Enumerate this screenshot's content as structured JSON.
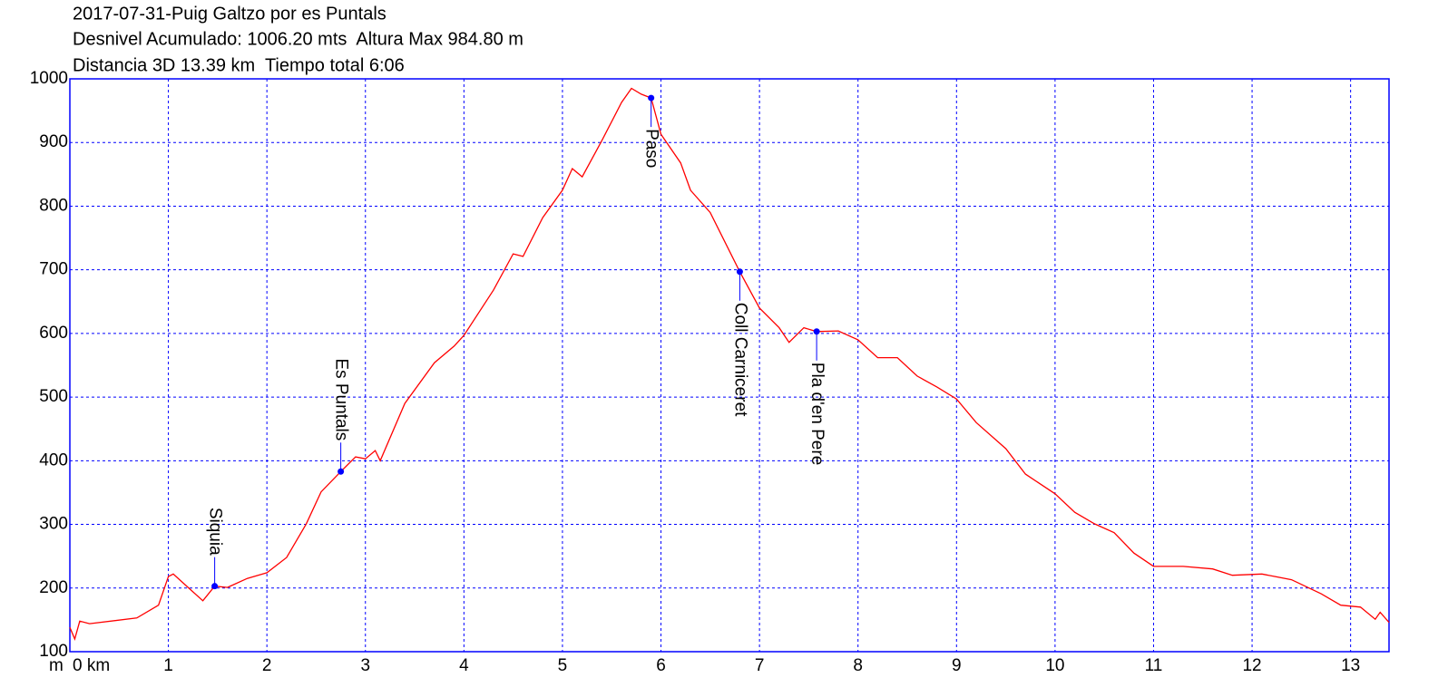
{
  "chart_data": {
    "type": "line",
    "title": "2017-07-31-Puig Galtzo por es Puntals",
    "subtitle": [
      "Desnivel Acumulado: 1006.20 mts  Altura Max 984.80 m",
      "Distancia 3D 13.39 km  Tiempo total 6:06"
    ],
    "y_unit": "m",
    "x": [
      0,
      0.05,
      0.1,
      0.2,
      0.68,
      0.9,
      1.0,
      1.05,
      1.2,
      1.35,
      1.47,
      1.6,
      1.8,
      2.0,
      2.2,
      2.4,
      2.55,
      2.75,
      2.9,
      3.0,
      3.1,
      3.15,
      3.4,
      3.7,
      3.9,
      4.0,
      4.3,
      4.5,
      4.6,
      4.8,
      5.0,
      5.1,
      5.2,
      5.4,
      5.6,
      5.7,
      5.8,
      5.9,
      6.0,
      6.2,
      6.3,
      6.5,
      6.8,
      7.0,
      7.2,
      7.3,
      7.45,
      7.58,
      7.8,
      8.0,
      8.2,
      8.4,
      8.6,
      8.8,
      9.0,
      9.2,
      9.5,
      9.7,
      10.0,
      10.2,
      10.4,
      10.6,
      10.8,
      11.0,
      11.3,
      11.6,
      11.8,
      12.1,
      12.4,
      12.7,
      12.9,
      13.1,
      13.25,
      13.3,
      13.39
    ],
    "values": [
      138,
      120,
      148,
      144,
      153,
      173,
      218,
      222,
      201,
      180,
      203,
      201,
      215,
      224,
      248,
      301,
      351,
      383,
      406,
      403,
      416,
      400,
      490,
      554,
      580,
      597,
      668,
      725,
      721,
      782,
      825,
      859,
      846,
      903,
      963,
      985,
      976,
      970,
      913,
      868,
      825,
      790,
      697,
      640,
      609,
      586,
      609,
      603,
      604,
      590,
      562,
      562,
      533,
      516,
      497,
      460,
      419,
      379,
      348,
      319,
      301,
      287,
      255,
      234,
      234,
      230,
      220,
      222,
      213,
      191,
      173,
      170,
      151,
      162,
      146
    ],
    "color": "#ff0000",
    "annotations": [
      {
        "label": "Siquia",
        "x": 1.47,
        "y": 203,
        "position": "above"
      },
      {
        "label": "Es Puntals",
        "x": 2.75,
        "y": 383,
        "position": "above"
      },
      {
        "label": "Paso",
        "x": 5.9,
        "y": 970,
        "position": "below"
      },
      {
        "label": "Coll Carniceret",
        "x": 6.8,
        "y": 697,
        "position": "below"
      },
      {
        "label": "Pla d'en Pere",
        "x": 7.58,
        "y": 603,
        "position": "below"
      }
    ],
    "marker_color": "#0000ff",
    "xlim": [
      0,
      13.39
    ],
    "ylim": [
      100,
      1000
    ],
    "xticks": [
      {
        "value": 0,
        "label": "0 km"
      },
      1,
      2,
      3,
      4,
      5,
      6,
      7,
      8,
      9,
      10,
      11,
      12,
      13
    ],
    "yticks": [
      100,
      200,
      300,
      400,
      500,
      600,
      700,
      800,
      900,
      1000
    ],
    "grid": true,
    "grid_color": "#0000ff"
  }
}
